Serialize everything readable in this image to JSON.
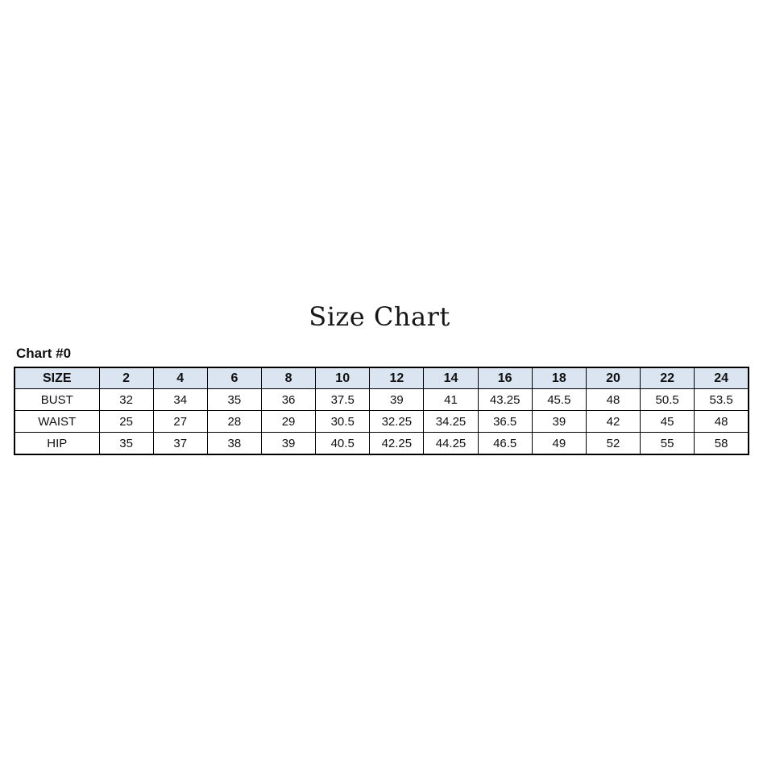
{
  "page": {
    "title": "Size Chart",
    "chart_label": "Chart #0"
  },
  "colors": {
    "header_bg": "#dbe5f1",
    "border": "#000000",
    "text": "#111111",
    "page_bg": "#ffffff"
  },
  "chart_data": {
    "type": "table",
    "title": "Size Chart",
    "label": "Chart #0",
    "columns": [
      "SIZE",
      "2",
      "4",
      "6",
      "8",
      "10",
      "12",
      "14",
      "16",
      "18",
      "20",
      "22",
      "24"
    ],
    "rows": [
      {
        "label": "BUST",
        "values": [
          "32",
          "34",
          "35",
          "36",
          "37.5",
          "39",
          "41",
          "43.25",
          "45.5",
          "48",
          "50.5",
          "53.5"
        ]
      },
      {
        "label": "WAIST",
        "values": [
          "25",
          "27",
          "28",
          "29",
          "30.5",
          "32.25",
          "34.25",
          "36.5",
          "39",
          "42",
          "45",
          "48"
        ]
      },
      {
        "label": "HIP",
        "values": [
          "35",
          "37",
          "38",
          "39",
          "40.5",
          "42.25",
          "44.25",
          "46.5",
          "49",
          "52",
          "55",
          "58"
        ]
      }
    ]
  }
}
